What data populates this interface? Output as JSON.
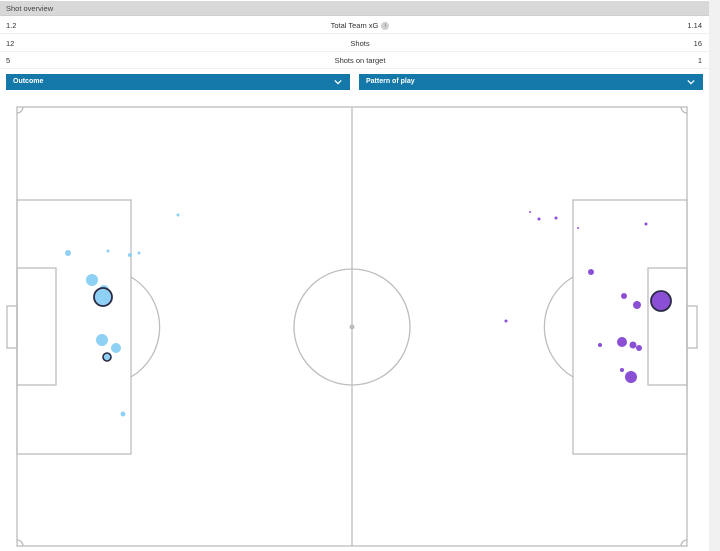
{
  "header": {
    "title": "Shot overview"
  },
  "stats": [
    {
      "left": "1.2",
      "label": "Total Team xG",
      "right": "1.14",
      "info": "i"
    },
    {
      "left": "12",
      "label": "Shots",
      "right": "16"
    },
    {
      "left": "5",
      "label": "Shots on target",
      "right": "1"
    }
  ],
  "filters": {
    "outcome": "Outcome",
    "pattern": "Pattern of play"
  },
  "colors": {
    "home_shot": "#8fd0f5",
    "away_shot": "#8a4fd4",
    "dropdown": "#1479a8",
    "pitch_line": "#bdbdbd"
  },
  "icons": {
    "dropdown": "chevron-down-icon",
    "info": "info-icon"
  }
}
